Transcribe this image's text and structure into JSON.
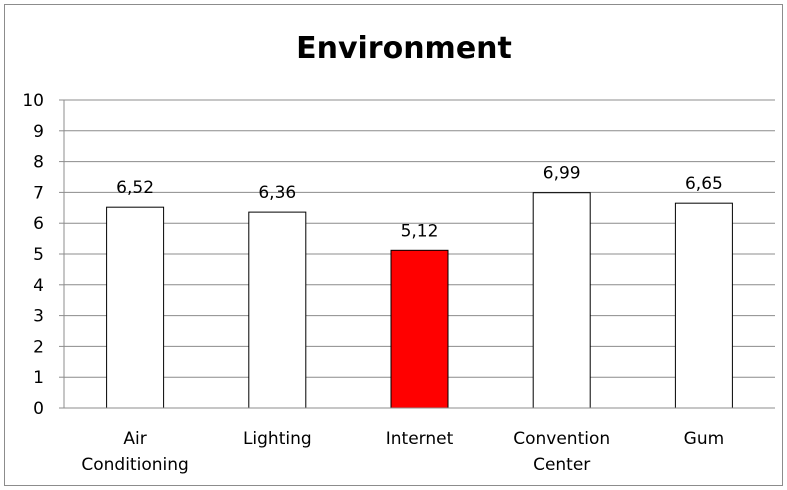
{
  "chart_data": {
    "type": "bar",
    "title": "Environment",
    "categories": [
      [
        "Air",
        "Conditioning"
      ],
      [
        "Lighting"
      ],
      [
        "Internet"
      ],
      [
        "Convention",
        "Center"
      ],
      [
        "Gum"
      ]
    ],
    "values": [
      6.52,
      6.36,
      5.12,
      6.99,
      6.65
    ],
    "data_labels": [
      "6,52",
      "6,36",
      "5,12",
      "6,99",
      "6,65"
    ],
    "bar_colors": [
      "#ffffff",
      "#ffffff",
      "#ff0000",
      "#ffffff",
      "#ffffff"
    ],
    "ylim": [
      0,
      10
    ],
    "yticks": [
      0,
      1,
      2,
      3,
      4,
      5,
      6,
      7,
      8,
      9,
      10
    ],
    "grid": true,
    "legend": "none",
    "xlabel": "",
    "ylabel": ""
  }
}
